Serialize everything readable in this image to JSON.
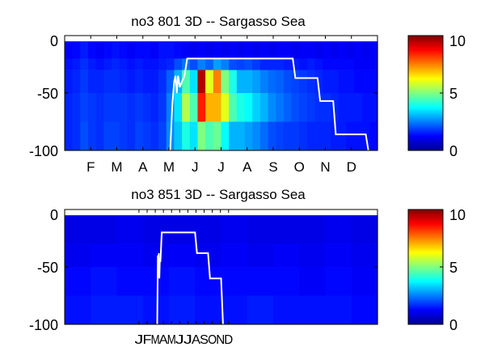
{
  "chart_data": [
    {
      "type": "heatmap",
      "title": "no3  801 3D   -- Sargasso Sea",
      "x_tick_labels": [
        "F",
        "M",
        "A",
        "M",
        "J",
        "J",
        "A",
        "S",
        "O",
        "N",
        "D"
      ],
      "y_ticks": [
        0,
        -50,
        -100
      ],
      "y_tick_labels": [
        "0",
        "-50",
        "-100"
      ],
      "ylim": [
        -100,
        0
      ],
      "xlim_months": [
        0,
        12
      ],
      "depth_band_edges": [
        -5,
        -20,
        -30,
        -50,
        -75,
        -100
      ],
      "colorbar": {
        "min": 0,
        "max": 10,
        "ticks": [
          "0",
          "5",
          "10"
        ],
        "colormap": "jet"
      },
      "heat_columns": [
        {
          "x": 0.0,
          "values": [
            1.2,
            1.4,
            1.5,
            1.6,
            1.6
          ]
        },
        {
          "x": 0.3,
          "values": [
            1.3,
            1.5,
            1.6,
            1.7,
            1.7
          ]
        },
        {
          "x": 0.6,
          "values": [
            1.5,
            1.7,
            1.8,
            1.9,
            2.0
          ]
        },
        {
          "x": 0.9,
          "values": [
            1.3,
            1.5,
            1.6,
            1.8,
            1.8
          ]
        },
        {
          "x": 1.2,
          "values": [
            1.2,
            1.4,
            1.6,
            1.7,
            1.7
          ]
        },
        {
          "x": 1.5,
          "values": [
            1.3,
            1.5,
            1.7,
            1.8,
            1.9
          ]
        },
        {
          "x": 1.8,
          "values": [
            1.4,
            1.6,
            1.7,
            1.8,
            1.9
          ]
        },
        {
          "x": 2.1,
          "values": [
            1.3,
            1.5,
            1.6,
            1.8,
            1.8
          ]
        },
        {
          "x": 2.4,
          "values": [
            1.2,
            1.4,
            1.5,
            1.7,
            1.7
          ]
        },
        {
          "x": 2.7,
          "values": [
            1.3,
            1.5,
            1.6,
            1.8,
            1.9
          ]
        },
        {
          "x": 3.0,
          "values": [
            1.3,
            1.4,
            1.5,
            1.7,
            1.8
          ]
        },
        {
          "x": 3.3,
          "values": [
            1.2,
            1.4,
            1.5,
            1.6,
            1.7
          ]
        },
        {
          "x": 3.6,
          "values": [
            1.4,
            1.5,
            1.7,
            1.8,
            1.9
          ]
        },
        {
          "x": 3.9,
          "values": [
            1.4,
            1.6,
            2.2,
            2.5,
            2.6
          ]
        },
        {
          "x": 4.2,
          "values": [
            1.3,
            2.0,
            3.0,
            3.5,
            3.2
          ]
        },
        {
          "x": 4.5,
          "values": [
            1.2,
            2.4,
            4.5,
            5.5,
            4.0
          ]
        },
        {
          "x": 4.8,
          "values": [
            1.1,
            2.0,
            3.5,
            4.5,
            3.5
          ]
        },
        {
          "x": 5.1,
          "values": [
            1.2,
            2.5,
            9.5,
            8.5,
            5.0
          ]
        },
        {
          "x": 5.4,
          "values": [
            1.1,
            2.2,
            6.0,
            7.0,
            4.5
          ]
        },
        {
          "x": 5.7,
          "values": [
            1.2,
            2.8,
            7.5,
            7.0,
            4.8
          ]
        },
        {
          "x": 6.0,
          "values": [
            1.1,
            2.5,
            5.0,
            6.0,
            3.8
          ]
        },
        {
          "x": 6.3,
          "values": [
            1.2,
            2.0,
            4.0,
            4.5,
            3.0
          ]
        },
        {
          "x": 6.6,
          "values": [
            1.1,
            1.9,
            3.0,
            4.0,
            3.0
          ]
        },
        {
          "x": 6.9,
          "values": [
            1.2,
            2.0,
            3.0,
            3.8,
            2.8
          ]
        },
        {
          "x": 7.2,
          "values": [
            1.1,
            1.8,
            2.8,
            3.3,
            2.6
          ]
        },
        {
          "x": 7.5,
          "values": [
            1.2,
            1.6,
            2.5,
            3.0,
            2.3
          ]
        },
        {
          "x": 7.8,
          "values": [
            1.1,
            1.6,
            2.3,
            2.6,
            2.0
          ]
        },
        {
          "x": 8.1,
          "values": [
            1.2,
            1.6,
            2.2,
            2.4,
            1.9
          ]
        },
        {
          "x": 8.4,
          "values": [
            1.2,
            1.5,
            2.0,
            2.2,
            1.8
          ]
        },
        {
          "x": 8.7,
          "values": [
            1.1,
            1.5,
            1.9,
            2.0,
            1.8
          ]
        },
        {
          "x": 9.0,
          "values": [
            1.2,
            1.4,
            1.8,
            1.9,
            1.7
          ]
        },
        {
          "x": 9.3,
          "values": [
            1.2,
            1.5,
            1.7,
            1.8,
            1.6
          ]
        },
        {
          "x": 9.6,
          "values": [
            1.1,
            1.4,
            1.6,
            1.7,
            1.6
          ]
        },
        {
          "x": 9.9,
          "values": [
            1.2,
            1.3,
            1.5,
            1.7,
            1.6
          ]
        },
        {
          "x": 10.2,
          "values": [
            1.1,
            1.3,
            1.5,
            1.6,
            1.5
          ]
        },
        {
          "x": 10.5,
          "values": [
            1.2,
            1.3,
            1.4,
            1.5,
            1.5
          ]
        },
        {
          "x": 10.8,
          "values": [
            1.1,
            1.3,
            1.4,
            1.5,
            1.4
          ]
        },
        {
          "x": 11.1,
          "values": [
            1.2,
            1.2,
            1.3,
            1.5,
            1.4
          ]
        },
        {
          "x": 11.4,
          "values": [
            1.1,
            1.2,
            1.3,
            1.4,
            1.4
          ]
        },
        {
          "x": 11.7,
          "values": [
            1.2,
            1.2,
            1.3,
            1.4,
            1.3
          ]
        }
      ],
      "line": {
        "color": "#ffffff",
        "x": [
          4.05,
          4.13,
          4.2,
          4.25,
          4.3,
          4.35,
          4.42,
          4.5,
          4.6,
          4.7,
          5.2,
          8.75,
          8.85,
          9.7,
          9.8,
          10.3,
          10.4,
          11.55,
          11.65
        ],
        "y": [
          -100,
          -60,
          -40,
          -35,
          -50,
          -35,
          -45,
          -40,
          -35,
          -20,
          -20,
          -20,
          -37,
          -37,
          -57,
          -57,
          -86,
          -86,
          -100
        ]
      }
    },
    {
      "type": "heatmap",
      "title": "no3  851 3D   -- Sargasso Sea",
      "x_tick_labels": [
        "J",
        "F",
        "M",
        "A",
        "M",
        "J",
        "J",
        "A",
        "S",
        "O",
        "N",
        "D"
      ],
      "y_ticks": [
        0,
        -50,
        -100
      ],
      "y_tick_labels": [
        "0",
        "-50",
        "-100"
      ],
      "ylim": [
        -100,
        0
      ],
      "xlim_months": [
        0,
        48
      ],
      "depth_band_edges": [
        -5,
        -30,
        -50,
        -75,
        -100
      ],
      "colorbar": {
        "min": 0,
        "max": 10,
        "ticks": [
          "0",
          "5",
          "10"
        ],
        "colormap": "jet"
      },
      "heat_columns": [
        {
          "x": 0,
          "values": [
            1.0,
            1.1,
            1.3,
            1.4
          ]
        },
        {
          "x": 4,
          "values": [
            1.0,
            1.2,
            1.4,
            1.5
          ]
        },
        {
          "x": 8,
          "values": [
            1.1,
            1.2,
            1.3,
            1.5
          ]
        },
        {
          "x": 12,
          "values": [
            1.0,
            1.1,
            1.3,
            1.4
          ]
        },
        {
          "x": 16,
          "values": [
            1.0,
            1.2,
            1.4,
            1.5
          ]
        },
        {
          "x": 20,
          "values": [
            1.0,
            1.1,
            1.3,
            1.4
          ]
        },
        {
          "x": 24,
          "values": [
            1.1,
            1.2,
            1.3,
            1.4
          ]
        },
        {
          "x": 28,
          "values": [
            1.0,
            1.1,
            1.3,
            1.5
          ]
        },
        {
          "x": 32,
          "values": [
            1.0,
            1.2,
            1.3,
            1.4
          ]
        },
        {
          "x": 36,
          "values": [
            1.0,
            1.1,
            1.2,
            1.4
          ]
        },
        {
          "x": 40,
          "values": [
            1.1,
            1.2,
            1.3,
            1.4
          ]
        },
        {
          "x": 44,
          "values": [
            1.0,
            1.1,
            1.2,
            1.3
          ]
        }
      ],
      "line": {
        "color": "#ffffff",
        "x": [
          14.2,
          14.3,
          14.38,
          14.45,
          14.52,
          14.6,
          14.7,
          14.9,
          15.2,
          20.0,
          20.3,
          22.0,
          22.3,
          24.0,
          24.3
        ],
        "y": [
          -100,
          -40,
          -55,
          -38,
          -60,
          -45,
          -45,
          -20,
          -20,
          -20,
          -38,
          -38,
          -60,
          -60,
          -100
        ]
      }
    }
  ]
}
